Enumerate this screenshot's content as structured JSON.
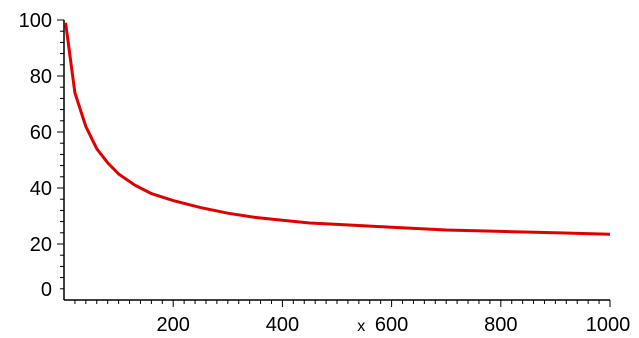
{
  "chart_data": {
    "type": "line",
    "title": "",
    "xlabel": "x",
    "ylabel": "",
    "xlim": [
      0,
      1000
    ],
    "ylim": [
      0,
      100
    ],
    "x_ticks": [
      "200",
      "400",
      "600",
      "800",
      "1000"
    ],
    "y_ticks": [
      "0",
      "20",
      "40",
      "60",
      "80",
      "100"
    ],
    "grid": false,
    "legend": "none",
    "series": [
      {
        "color": "#e00000",
        "x": [
          3,
          20,
          40,
          60,
          80,
          100,
          130,
          160,
          200,
          250,
          300,
          350,
          400,
          450,
          500,
          600,
          700,
          800,
          900,
          1000
        ],
        "y": [
          99,
          74,
          62,
          54,
          49,
          45,
          41,
          38,
          35.5,
          33,
          31,
          29.5,
          28.5,
          27.5,
          27,
          26,
          25,
          24.5,
          24,
          23.5
        ]
      }
    ]
  }
}
